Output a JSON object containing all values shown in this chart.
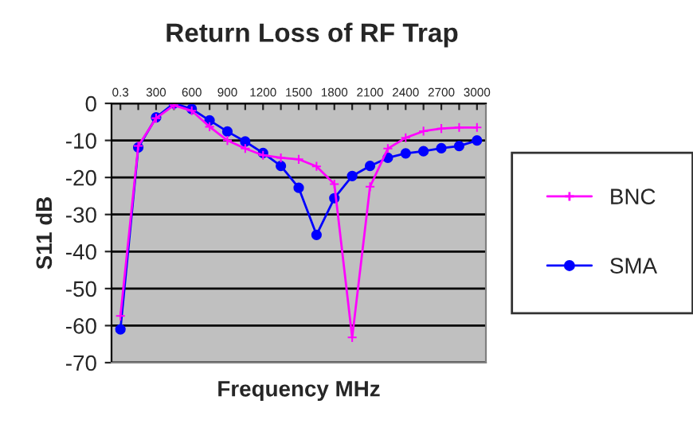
{
  "chart_data": {
    "type": "line",
    "title": "Return Loss of RF Trap",
    "xlabel": "Frequency MHz",
    "ylabel": "S11 dB",
    "categories": [
      "0.3",
      null,
      "300",
      null,
      "600",
      null,
      "900",
      null,
      "1200",
      null,
      "1500",
      null,
      "1800",
      null,
      "2100",
      null,
      "2400",
      null,
      "2700",
      null,
      "3000"
    ],
    "series": [
      {
        "name": "BNC",
        "color": "#ff00ff",
        "marker": "cross",
        "values": [
          -57.4,
          -11.5,
          -4,
          -0.5,
          -2,
          -6.3,
          -10,
          -12.2,
          -14,
          -14.7,
          -15.1,
          -17,
          -21.8,
          -63.2,
          -22.5,
          -12.2,
          -9.3,
          -7.5,
          -6.8,
          -6.5,
          -6.5
        ]
      },
      {
        "name": "SMA",
        "color": "#0000ff",
        "marker": "circle",
        "values": [
          -61,
          -11.9,
          -3.8,
          0,
          -1.5,
          -4.6,
          -7.6,
          -10.3,
          -13.4,
          -16.9,
          -22.8,
          -35.5,
          -25.6,
          -19.6,
          -16.9,
          -14.7,
          -13.5,
          -12.9,
          -12.1,
          -11.5,
          -10
        ]
      }
    ],
    "ylim": [
      -70,
      0
    ],
    "yticks": [
      -70,
      -60,
      -50,
      -40,
      -30,
      -20,
      -10,
      0
    ],
    "grid": "y",
    "legend": "right",
    "line_style": "solid"
  }
}
